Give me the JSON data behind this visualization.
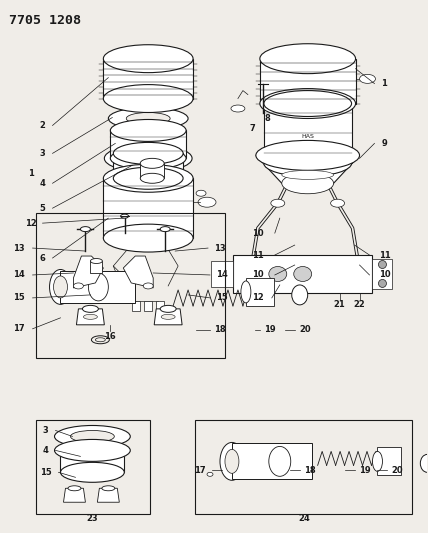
{
  "title": "7705 1208",
  "bg_color": "#f0ede8",
  "fig_width": 4.28,
  "fig_height": 5.33,
  "dpi": 100,
  "lc": "#1a1a1a",
  "lw_main": 0.8,
  "lw_thin": 0.5,
  "lw_thick": 1.2,
  "fs_label": 6.0,
  "fs_title": 9.5
}
